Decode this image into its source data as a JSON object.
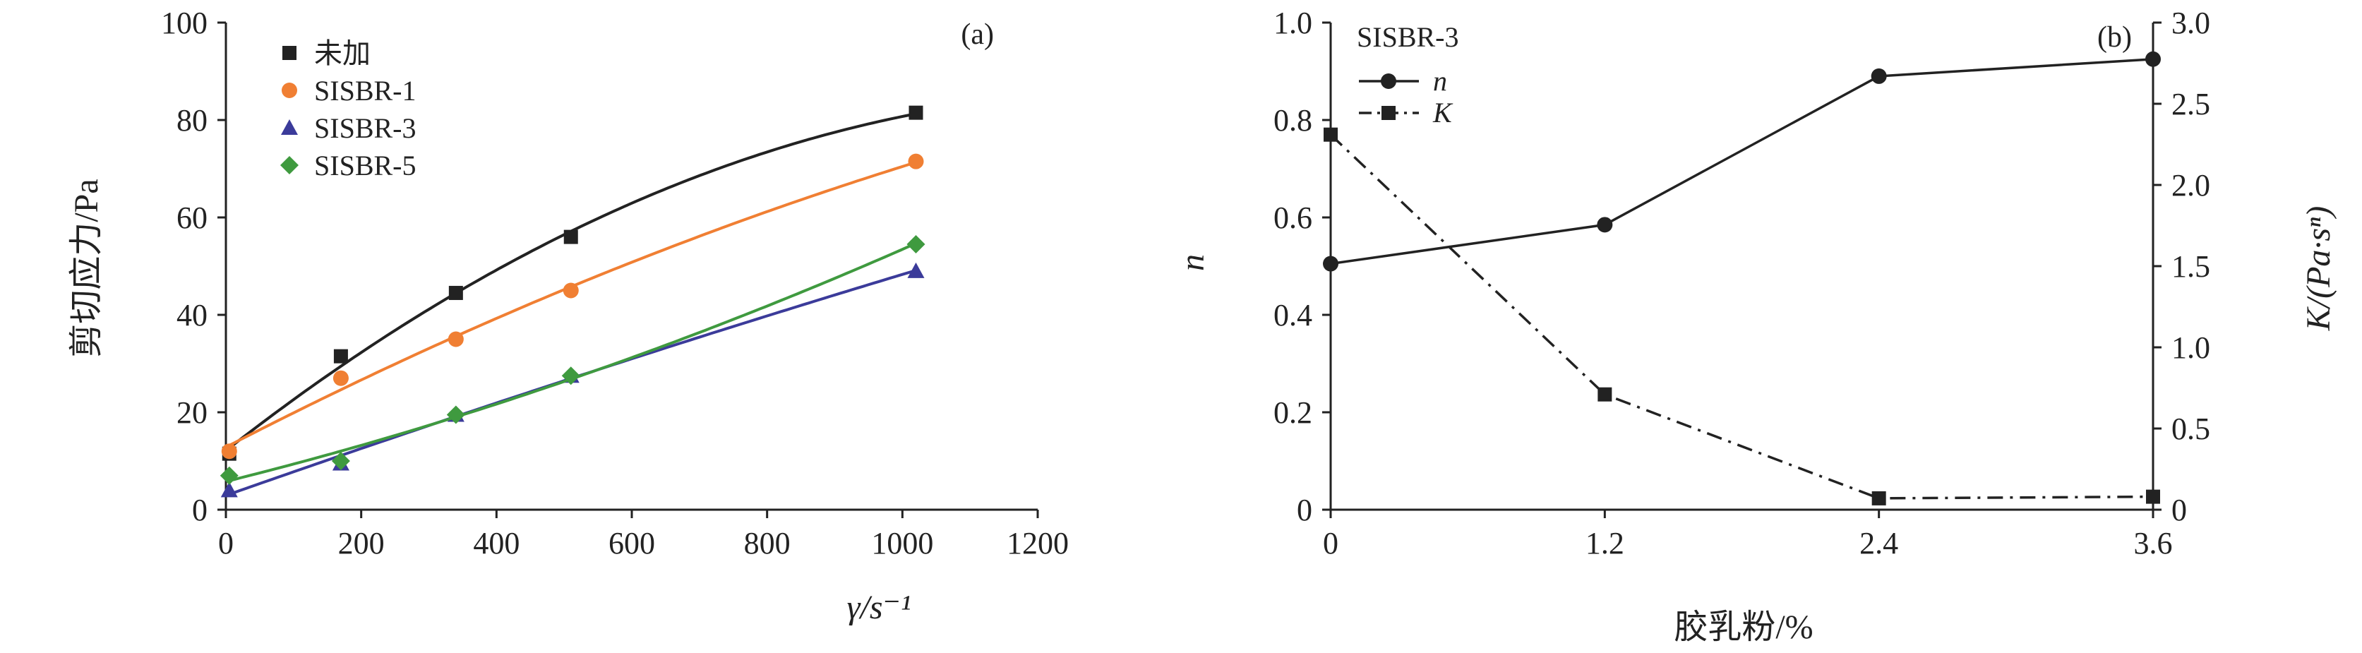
{
  "chart_data": [
    {
      "type": "scatter",
      "panel_label": "(a)",
      "title": "",
      "xlabel": "γ/s⁻¹",
      "ylabel": "剪切应力/Pa",
      "xlim": [
        0,
        1200
      ],
      "ylim": [
        0,
        100
      ],
      "xticks": [
        0,
        200,
        400,
        600,
        800,
        1000,
        1200
      ],
      "yticks": [
        0,
        20,
        40,
        60,
        80,
        100
      ],
      "grid": false,
      "legend_position": "top-left",
      "series": [
        {
          "name": "未加",
          "color": "#222222",
          "marker": "square",
          "x": [
            5,
            170,
            340,
            510,
            1020
          ],
          "y": [
            11.5,
            31.5,
            44.5,
            56,
            81.5
          ]
        },
        {
          "name": "SISBR-1",
          "color": "#f07f33",
          "marker": "circle",
          "x": [
            5,
            170,
            340,
            510,
            1020
          ],
          "y": [
            12,
            27,
            35,
            45,
            71.5
          ]
        },
        {
          "name": "SISBR-3",
          "color": "#3b3b9a",
          "marker": "triangle",
          "x": [
            5,
            170,
            340,
            510,
            1020
          ],
          "y": [
            4,
            9.5,
            19.5,
            27.5,
            49
          ]
        },
        {
          "name": "SISBR-5",
          "color": "#3f9a3f",
          "marker": "diamond",
          "x": [
            5,
            170,
            340,
            510,
            1020
          ],
          "y": [
            7,
            10,
            19.5,
            27.5,
            54.5
          ]
        }
      ]
    },
    {
      "type": "line",
      "panel_label": "(b)",
      "title": "SISBR-3",
      "xlabel": "胶乳粉/%",
      "ylabel": "n",
      "y2label": "K/(Pa·sⁿ)",
      "xlim": [
        0,
        3.6
      ],
      "ylim": [
        0,
        1.0
      ],
      "y2lim": [
        0,
        3.0
      ],
      "xticks": [
        "0",
        "1.2",
        "2.4",
        "3.6"
      ],
      "yticks": [
        "0",
        "0.2",
        "0.4",
        "0.6",
        "0.8",
        "1.0"
      ],
      "y2ticks": [
        "0",
        "0.5",
        "1.0",
        "1.5",
        "2.0",
        "2.5",
        "3.0"
      ],
      "grid": false,
      "legend_position": "top-left",
      "series": [
        {
          "name": "n",
          "axis": "left",
          "style": "solid",
          "marker": "circle",
          "color": "#222222",
          "x": [
            0,
            1.2,
            2.4,
            3.6
          ],
          "y": [
            0.505,
            0.585,
            0.89,
            0.925
          ]
        },
        {
          "name": "K",
          "axis": "right",
          "style": "dash-dot",
          "marker": "square",
          "color": "#222222",
          "x": [
            0,
            1.2,
            2.4,
            3.6
          ],
          "y": [
            2.31,
            0.71,
            0.07,
            0.08
          ]
        }
      ]
    }
  ]
}
